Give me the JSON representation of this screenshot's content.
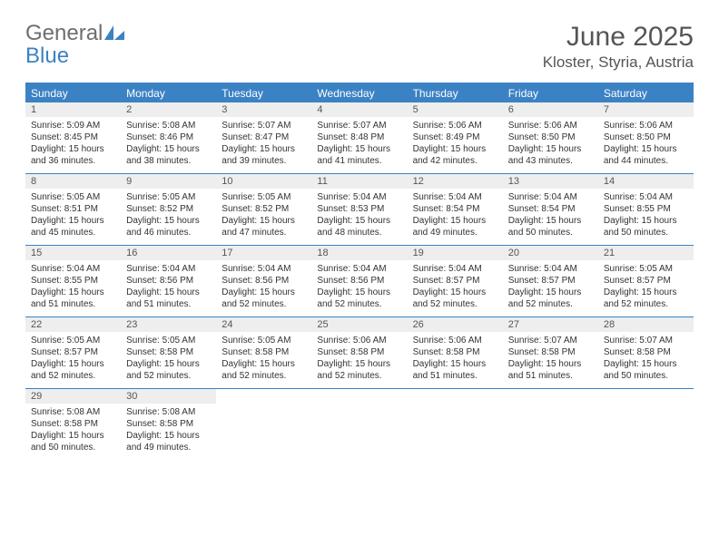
{
  "colors": {
    "accent": "#3b82c4",
    "header_text": "#ffffff",
    "daynum_bg": "#eeeeee",
    "text": "#333333",
    "muted": "#555555",
    "logo_gray": "#6e6e6e",
    "background": "#ffffff"
  },
  "typography": {
    "font_family": "Arial, Helvetica, sans-serif",
    "month_title_fontsize": 30,
    "location_fontsize": 17,
    "dayhead_fontsize": 12,
    "daynum_fontsize": 11,
    "body_fontsize": 10
  },
  "logo": {
    "part1": "General",
    "part2": "Blue"
  },
  "title": {
    "month": "June 2025",
    "location": "Kloster, Styria, Austria"
  },
  "day_headers": [
    "Sunday",
    "Monday",
    "Tuesday",
    "Wednesday",
    "Thursday",
    "Friday",
    "Saturday"
  ],
  "weeks": [
    [
      {
        "n": "1",
        "sr": "Sunrise: 5:09 AM",
        "ss": "Sunset: 8:45 PM",
        "d1": "Daylight: 15 hours",
        "d2": "and 36 minutes."
      },
      {
        "n": "2",
        "sr": "Sunrise: 5:08 AM",
        "ss": "Sunset: 8:46 PM",
        "d1": "Daylight: 15 hours",
        "d2": "and 38 minutes."
      },
      {
        "n": "3",
        "sr": "Sunrise: 5:07 AM",
        "ss": "Sunset: 8:47 PM",
        "d1": "Daylight: 15 hours",
        "d2": "and 39 minutes."
      },
      {
        "n": "4",
        "sr": "Sunrise: 5:07 AM",
        "ss": "Sunset: 8:48 PM",
        "d1": "Daylight: 15 hours",
        "d2": "and 41 minutes."
      },
      {
        "n": "5",
        "sr": "Sunrise: 5:06 AM",
        "ss": "Sunset: 8:49 PM",
        "d1": "Daylight: 15 hours",
        "d2": "and 42 minutes."
      },
      {
        "n": "6",
        "sr": "Sunrise: 5:06 AM",
        "ss": "Sunset: 8:50 PM",
        "d1": "Daylight: 15 hours",
        "d2": "and 43 minutes."
      },
      {
        "n": "7",
        "sr": "Sunrise: 5:06 AM",
        "ss": "Sunset: 8:50 PM",
        "d1": "Daylight: 15 hours",
        "d2": "and 44 minutes."
      }
    ],
    [
      {
        "n": "8",
        "sr": "Sunrise: 5:05 AM",
        "ss": "Sunset: 8:51 PM",
        "d1": "Daylight: 15 hours",
        "d2": "and 45 minutes."
      },
      {
        "n": "9",
        "sr": "Sunrise: 5:05 AM",
        "ss": "Sunset: 8:52 PM",
        "d1": "Daylight: 15 hours",
        "d2": "and 46 minutes."
      },
      {
        "n": "10",
        "sr": "Sunrise: 5:05 AM",
        "ss": "Sunset: 8:52 PM",
        "d1": "Daylight: 15 hours",
        "d2": "and 47 minutes."
      },
      {
        "n": "11",
        "sr": "Sunrise: 5:04 AM",
        "ss": "Sunset: 8:53 PM",
        "d1": "Daylight: 15 hours",
        "d2": "and 48 minutes."
      },
      {
        "n": "12",
        "sr": "Sunrise: 5:04 AM",
        "ss": "Sunset: 8:54 PM",
        "d1": "Daylight: 15 hours",
        "d2": "and 49 minutes."
      },
      {
        "n": "13",
        "sr": "Sunrise: 5:04 AM",
        "ss": "Sunset: 8:54 PM",
        "d1": "Daylight: 15 hours",
        "d2": "and 50 minutes."
      },
      {
        "n": "14",
        "sr": "Sunrise: 5:04 AM",
        "ss": "Sunset: 8:55 PM",
        "d1": "Daylight: 15 hours",
        "d2": "and 50 minutes."
      }
    ],
    [
      {
        "n": "15",
        "sr": "Sunrise: 5:04 AM",
        "ss": "Sunset: 8:55 PM",
        "d1": "Daylight: 15 hours",
        "d2": "and 51 minutes."
      },
      {
        "n": "16",
        "sr": "Sunrise: 5:04 AM",
        "ss": "Sunset: 8:56 PM",
        "d1": "Daylight: 15 hours",
        "d2": "and 51 minutes."
      },
      {
        "n": "17",
        "sr": "Sunrise: 5:04 AM",
        "ss": "Sunset: 8:56 PM",
        "d1": "Daylight: 15 hours",
        "d2": "and 52 minutes."
      },
      {
        "n": "18",
        "sr": "Sunrise: 5:04 AM",
        "ss": "Sunset: 8:56 PM",
        "d1": "Daylight: 15 hours",
        "d2": "and 52 minutes."
      },
      {
        "n": "19",
        "sr": "Sunrise: 5:04 AM",
        "ss": "Sunset: 8:57 PM",
        "d1": "Daylight: 15 hours",
        "d2": "and 52 minutes."
      },
      {
        "n": "20",
        "sr": "Sunrise: 5:04 AM",
        "ss": "Sunset: 8:57 PM",
        "d1": "Daylight: 15 hours",
        "d2": "and 52 minutes."
      },
      {
        "n": "21",
        "sr": "Sunrise: 5:05 AM",
        "ss": "Sunset: 8:57 PM",
        "d1": "Daylight: 15 hours",
        "d2": "and 52 minutes."
      }
    ],
    [
      {
        "n": "22",
        "sr": "Sunrise: 5:05 AM",
        "ss": "Sunset: 8:57 PM",
        "d1": "Daylight: 15 hours",
        "d2": "and 52 minutes."
      },
      {
        "n": "23",
        "sr": "Sunrise: 5:05 AM",
        "ss": "Sunset: 8:58 PM",
        "d1": "Daylight: 15 hours",
        "d2": "and 52 minutes."
      },
      {
        "n": "24",
        "sr": "Sunrise: 5:05 AM",
        "ss": "Sunset: 8:58 PM",
        "d1": "Daylight: 15 hours",
        "d2": "and 52 minutes."
      },
      {
        "n": "25",
        "sr": "Sunrise: 5:06 AM",
        "ss": "Sunset: 8:58 PM",
        "d1": "Daylight: 15 hours",
        "d2": "and 52 minutes."
      },
      {
        "n": "26",
        "sr": "Sunrise: 5:06 AM",
        "ss": "Sunset: 8:58 PM",
        "d1": "Daylight: 15 hours",
        "d2": "and 51 minutes."
      },
      {
        "n": "27",
        "sr": "Sunrise: 5:07 AM",
        "ss": "Sunset: 8:58 PM",
        "d1": "Daylight: 15 hours",
        "d2": "and 51 minutes."
      },
      {
        "n": "28",
        "sr": "Sunrise: 5:07 AM",
        "ss": "Sunset: 8:58 PM",
        "d1": "Daylight: 15 hours",
        "d2": "and 50 minutes."
      }
    ],
    [
      {
        "n": "29",
        "sr": "Sunrise: 5:08 AM",
        "ss": "Sunset: 8:58 PM",
        "d1": "Daylight: 15 hours",
        "d2": "and 50 minutes."
      },
      {
        "n": "30",
        "sr": "Sunrise: 5:08 AM",
        "ss": "Sunset: 8:58 PM",
        "d1": "Daylight: 15 hours",
        "d2": "and 49 minutes."
      },
      {
        "empty": true
      },
      {
        "empty": true
      },
      {
        "empty": true
      },
      {
        "empty": true
      },
      {
        "empty": true
      }
    ]
  ]
}
